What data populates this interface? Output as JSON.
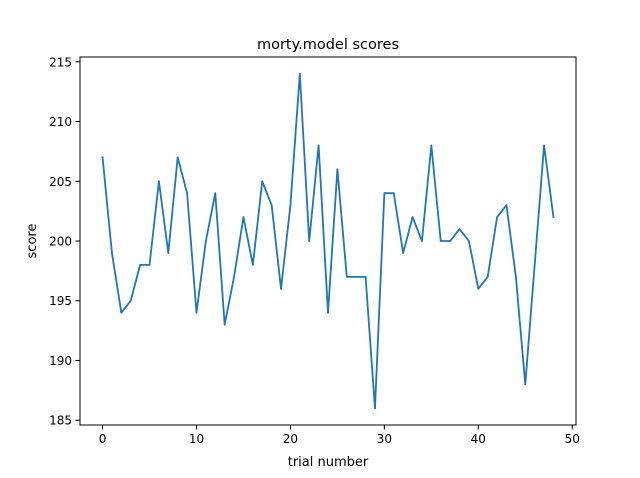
{
  "chart_data": {
    "type": "line",
    "title": "morty.model scores",
    "xlabel": "trial number",
    "ylabel": "score",
    "xlim": [
      -2.4,
      50.4
    ],
    "ylim": [
      184.6,
      215.4
    ],
    "x_ticks": [
      0,
      10,
      20,
      30,
      40,
      50
    ],
    "y_ticks": [
      185,
      190,
      195,
      200,
      205,
      210,
      215
    ],
    "grid": false,
    "series": [
      {
        "color": "#1f77b4",
        "x": [
          0,
          1,
          2,
          3,
          4,
          5,
          6,
          7,
          8,
          9,
          10,
          11,
          12,
          13,
          14,
          15,
          16,
          17,
          18,
          19,
          20,
          21,
          22,
          23,
          24,
          25,
          26,
          27,
          28,
          29,
          30,
          31,
          32,
          33,
          34,
          35,
          36,
          37,
          38,
          39,
          40,
          41,
          42,
          43,
          44,
          45,
          46,
          47,
          48
        ],
        "values": [
          207,
          199,
          194,
          195,
          198,
          198,
          205,
          199,
          207,
          204,
          194,
          200,
          204,
          193,
          197,
          202,
          198,
          205,
          203,
          196,
          203,
          214,
          200,
          208,
          194,
          206,
          197,
          197,
          197,
          186,
          204,
          204,
          199,
          202,
          200,
          208,
          200,
          200,
          201,
          200,
          196,
          197,
          202,
          203,
          197,
          188,
          198,
          208,
          202
        ]
      }
    ]
  }
}
